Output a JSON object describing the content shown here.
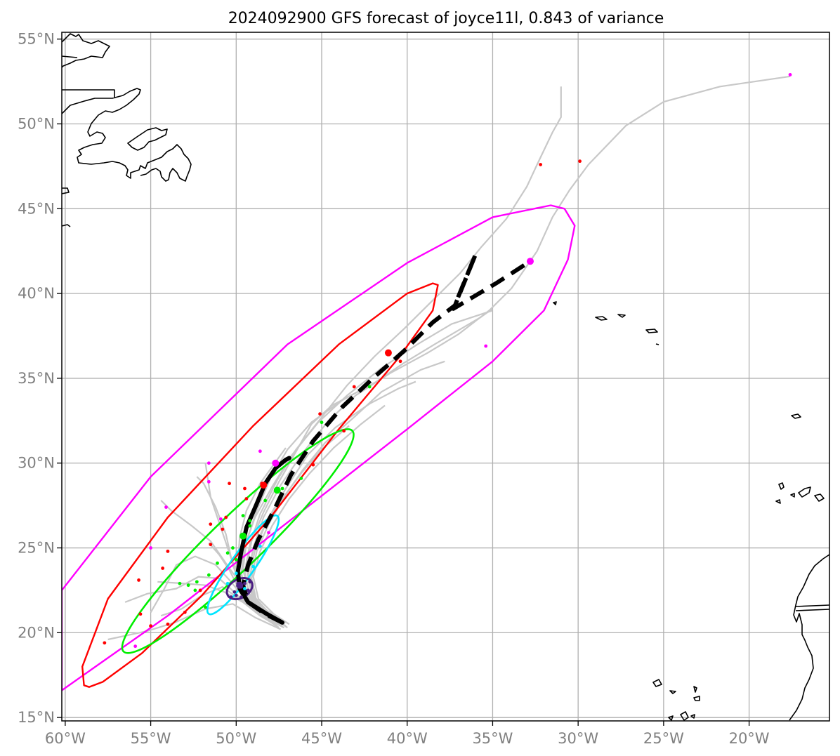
{
  "title": "2024092900 GFS forecast of joyce11l, 0.843 of variance",
  "map": {
    "lon_range": [
      -60.2,
      -15.3
    ],
    "lat_range": [
      14.8,
      55.4
    ],
    "lon_ticks": [
      -60,
      -55,
      -50,
      -45,
      -40,
      -35,
      -30,
      -25,
      -20
    ],
    "lat_ticks": [
      15,
      20,
      25,
      30,
      35,
      40,
      45,
      50,
      55
    ],
    "lon_tick_labels": [
      "60°W",
      "55°W",
      "50°W",
      "45°W",
      "40°W",
      "35°W",
      "30°W",
      "25°W",
      "20°W"
    ],
    "lat_tick_labels": [
      "15°N",
      "20°N",
      "25°N",
      "30°N",
      "35°N",
      "40°N",
      "45°N",
      "50°N",
      "55°N"
    ],
    "grid": true
  },
  "colors": {
    "member_track": "#c8c8c8",
    "mean_track": "#000000",
    "ellipse_red": "#ff0000",
    "ellipse_magenta": "#ff00ff",
    "ellipse_green": "#00ee00",
    "ellipse_cyan": "#00e5ff",
    "ellipse_purple": "#4b1f82",
    "coastline": "#000000"
  },
  "mean_track_solid": [
    [
      -47.3,
      20.6
    ],
    [
      -48.2,
      21.1
    ],
    [
      -49.3,
      21.8
    ],
    [
      -49.8,
      22.6
    ],
    [
      -49.9,
      23.6
    ],
    [
      -49.7,
      24.8
    ],
    [
      -49.4,
      26.2
    ],
    [
      -48.8,
      27.6
    ],
    [
      -48.3,
      28.8
    ],
    [
      -47.7,
      29.7
    ],
    [
      -47.1,
      30.2
    ],
    [
      -46.9,
      30.3
    ]
  ],
  "mean_track_dashed": [
    [
      -47.3,
      20.6
    ],
    [
      -48.3,
      21.1
    ],
    [
      -49.3,
      21.8
    ],
    [
      -49.6,
      22.8
    ],
    [
      -49.3,
      24.0
    ],
    [
      -48.7,
      25.5
    ],
    [
      -47.8,
      27.2
    ],
    [
      -46.8,
      29.3
    ],
    [
      -45.5,
      31.3
    ],
    [
      -43.8,
      33.3
    ],
    [
      -42.0,
      35.0
    ],
    [
      -40.2,
      36.6
    ],
    [
      -38.5,
      38.3
    ],
    [
      -37.2,
      39.3
    ],
    [
      -36.0,
      42.3
    ],
    [
      -37.3,
      39.1
    ],
    [
      -34.8,
      40.6
    ],
    [
      -32.8,
      41.9
    ]
  ],
  "member_tracks": [
    [
      [
        -47.3,
        20.4
      ],
      [
        -48.5,
        21.1
      ],
      [
        -49.5,
        22.0
      ],
      [
        -50.3,
        23.0
      ],
      [
        -51.2,
        24.0
      ],
      [
        -52.4,
        24.5
      ],
      [
        -53.5,
        24.0
      ],
      [
        -54.2,
        22.6
      ],
      [
        -55.0,
        21.2
      ]
    ],
    [
      [
        -47.5,
        20.5
      ],
      [
        -48.8,
        21.2
      ],
      [
        -49.9,
        22.2
      ],
      [
        -51.0,
        23.2
      ],
      [
        -52.2,
        23.3
      ],
      [
        -53.5,
        22.6
      ],
      [
        -55.2,
        22.3
      ],
      [
        -56.5,
        21.8
      ]
    ],
    [
      [
        -47.2,
        20.3
      ],
      [
        -48.6,
        21.0
      ],
      [
        -49.7,
        21.9
      ],
      [
        -50.8,
        22.7
      ],
      [
        -52.0,
        22.2
      ],
      [
        -53.2,
        21.4
      ],
      [
        -54.4,
        21.0
      ]
    ],
    [
      [
        -47.4,
        20.2
      ],
      [
        -48.9,
        20.9
      ],
      [
        -50.2,
        21.7
      ],
      [
        -51.8,
        21.4
      ],
      [
        -53.6,
        20.6
      ],
      [
        -55.2,
        20.1
      ],
      [
        -57.5,
        19.6
      ]
    ],
    [
      [
        -47.1,
        20.6
      ],
      [
        -48.2,
        21.3
      ],
      [
        -49.3,
        22.3
      ],
      [
        -50.4,
        23.8
      ],
      [
        -51.5,
        25.4
      ],
      [
        -52.6,
        26.3
      ],
      [
        -53.8,
        27.2
      ],
      [
        -54.4,
        27.8
      ]
    ],
    [
      [
        -47.3,
        20.7
      ],
      [
        -48.4,
        21.4
      ],
      [
        -49.5,
        22.6
      ],
      [
        -50.3,
        24.4
      ],
      [
        -50.9,
        26.2
      ],
      [
        -51.5,
        28.0
      ],
      [
        -51.8,
        30.0
      ]
    ],
    [
      [
        -47.2,
        20.5
      ],
      [
        -48.5,
        21.2
      ],
      [
        -49.6,
        22.4
      ],
      [
        -50.2,
        24.0
      ],
      [
        -50.6,
        25.8
      ],
      [
        -51.2,
        27.4
      ],
      [
        -51.9,
        28.8
      ],
      [
        -52.3,
        29.2
      ]
    ],
    [
      [
        -47.5,
        20.8
      ],
      [
        -48.6,
        21.5
      ],
      [
        -49.5,
        22.6
      ],
      [
        -49.9,
        24.0
      ],
      [
        -49.8,
        25.6
      ],
      [
        -49.4,
        27.2
      ],
      [
        -48.6,
        28.8
      ],
      [
        -47.6,
        30.2
      ],
      [
        -47.1,
        30.9
      ]
    ],
    [
      [
        -47.3,
        20.6
      ],
      [
        -48.2,
        21.3
      ],
      [
        -49.1,
        22.3
      ],
      [
        -49.4,
        23.8
      ],
      [
        -49.1,
        25.4
      ],
      [
        -48.4,
        27.1
      ],
      [
        -47.5,
        28.9
      ],
      [
        -46.6,
        30.5
      ],
      [
        -45.6,
        32.3
      ],
      [
        -44.4,
        33.4
      ],
      [
        -42.9,
        34.2
      ]
    ],
    [
      [
        -47.1,
        20.4
      ],
      [
        -48.0,
        21.0
      ],
      [
        -48.9,
        21.9
      ],
      [
        -49.2,
        23.3
      ],
      [
        -48.9,
        24.9
      ],
      [
        -48.2,
        26.6
      ],
      [
        -47.1,
        28.5
      ],
      [
        -45.8,
        30.5
      ],
      [
        -44.2,
        32.1
      ],
      [
        -42.2,
        33.5
      ],
      [
        -40.5,
        34.4
      ],
      [
        -39.5,
        34.8
      ]
    ],
    [
      [
        -47.4,
        20.6
      ],
      [
        -48.3,
        21.2
      ],
      [
        -49.2,
        22.2
      ],
      [
        -49.6,
        23.7
      ],
      [
        -49.4,
        25.4
      ],
      [
        -48.8,
        27.2
      ],
      [
        -48.0,
        29.1
      ],
      [
        -47.0,
        30.8
      ],
      [
        -45.6,
        32.4
      ],
      [
        -43.8,
        33.7
      ],
      [
        -41.8,
        34.8
      ],
      [
        -40.2,
        35.9
      ],
      [
        -38.4,
        37.0
      ],
      [
        -35.7,
        38.6
      ],
      [
        -35.0,
        39.1
      ]
    ],
    [
      [
        -47.2,
        20.5
      ],
      [
        -48.1,
        21.1
      ],
      [
        -49.0,
        22.0
      ],
      [
        -49.3,
        23.4
      ],
      [
        -49.0,
        25.0
      ],
      [
        -48.4,
        26.8
      ],
      [
        -47.4,
        28.7
      ],
      [
        -46.1,
        30.6
      ],
      [
        -44.6,
        32.5
      ],
      [
        -43.0,
        34.0
      ],
      [
        -41.0,
        35.3
      ],
      [
        -38.8,
        36.5
      ],
      [
        -37.0,
        37.6
      ],
      [
        -35.2,
        39.0
      ],
      [
        -33.9,
        40.3
      ],
      [
        -32.4,
        42.5
      ],
      [
        -31.5,
        44.5
      ],
      [
        -30.5,
        46.1
      ],
      [
        -29.4,
        47.6
      ],
      [
        -27.2,
        49.9
      ],
      [
        -25.0,
        51.3
      ],
      [
        -21.7,
        52.2
      ],
      [
        -17.6,
        52.8
      ]
    ],
    [
      [
        -47.3,
        20.6
      ],
      [
        -48.3,
        21.2
      ],
      [
        -49.2,
        22.1
      ],
      [
        -49.5,
        23.6
      ],
      [
        -49.2,
        25.2
      ],
      [
        -48.6,
        27.0
      ],
      [
        -47.6,
        29.0
      ],
      [
        -46.5,
        30.8
      ],
      [
        -45.0,
        32.7
      ],
      [
        -43.5,
        34.6
      ],
      [
        -41.9,
        36.3
      ],
      [
        -40.2,
        37.9
      ],
      [
        -38.6,
        39.5
      ],
      [
        -36.9,
        41.2
      ],
      [
        -35.7,
        42.7
      ],
      [
        -34.2,
        44.4
      ],
      [
        -33.0,
        46.3
      ],
      [
        -32.4,
        47.6
      ],
      [
        -31.5,
        49.5
      ],
      [
        -31.0,
        50.4
      ],
      [
        -31.0,
        52.2
      ]
    ],
    [
      [
        -47.4,
        20.7
      ],
      [
        -48.4,
        21.2
      ],
      [
        -49.3,
        22.1
      ],
      [
        -49.7,
        23.5
      ],
      [
        -49.5,
        25.1
      ],
      [
        -48.9,
        26.8
      ],
      [
        -47.9,
        28.6
      ],
      [
        -46.8,
        30.4
      ],
      [
        -45.2,
        32.4
      ],
      [
        -43.5,
        34.0
      ],
      [
        -41.5,
        35.6
      ],
      [
        -39.4,
        37.0
      ],
      [
        -37.4,
        38.2
      ],
      [
        -35.0,
        39.0
      ]
    ],
    [
      [
        -47.0,
        20.3
      ],
      [
        -47.9,
        20.9
      ],
      [
        -48.8,
        21.8
      ],
      [
        -49.1,
        23.2
      ],
      [
        -48.8,
        24.8
      ],
      [
        -48.1,
        26.4
      ],
      [
        -47.2,
        28.0
      ],
      [
        -46.1,
        29.6
      ],
      [
        -44.8,
        31.2
      ],
      [
        -43.0,
        32.8
      ],
      [
        -41.5,
        34.2
      ],
      [
        -39.2,
        35.5
      ],
      [
        -37.8,
        36.0
      ]
    ],
    [
      [
        -46.9,
        20.5
      ],
      [
        -47.8,
        21.1
      ],
      [
        -48.7,
        22.0
      ],
      [
        -49.0,
        23.3
      ],
      [
        -48.6,
        24.8
      ],
      [
        -47.9,
        26.3
      ],
      [
        -46.9,
        27.9
      ],
      [
        -45.7,
        29.4
      ],
      [
        -44.3,
        30.9
      ],
      [
        -42.7,
        32.3
      ],
      [
        -41.3,
        33.4
      ]
    ],
    [
      [
        -47.2,
        20.6
      ],
      [
        -48.1,
        21.2
      ],
      [
        -49.0,
        22.1
      ],
      [
        -49.3,
        23.4
      ],
      [
        -49.0,
        24.9
      ],
      [
        -48.3,
        26.4
      ],
      [
        -47.3,
        27.9
      ],
      [
        -46.2,
        29.4
      ],
      [
        -44.9,
        30.9
      ],
      [
        -43.4,
        32.2
      ]
    ],
    [
      [
        -47.5,
        20.3
      ],
      [
        -48.4,
        20.9
      ],
      [
        -49.3,
        21.7
      ],
      [
        -49.9,
        22.7
      ],
      [
        -50.4,
        23.7
      ],
      [
        -51.0,
        24.6
      ],
      [
        -51.6,
        25.3
      ]
    ],
    [
      [
        -47.6,
        20.4
      ],
      [
        -48.6,
        21.0
      ],
      [
        -49.6,
        21.8
      ],
      [
        -50.7,
        22.4
      ],
      [
        -51.8,
        22.8
      ],
      [
        -53.0,
        22.9
      ],
      [
        -54.6,
        23.0
      ]
    ]
  ],
  "forecast_points": {
    "red": [
      [
        -32.2,
        47.6
      ],
      [
        -29.9,
        47.8
      ],
      [
        -41.1,
        36.5
      ],
      [
        -40.4,
        36.0
      ],
      [
        -43.1,
        34.5
      ],
      [
        -45.1,
        32.9
      ],
      [
        -43.7,
        31.9
      ],
      [
        -45.5,
        29.9
      ],
      [
        -48.5,
        28.8
      ],
      [
        -48.3,
        28.7
      ],
      [
        -49.5,
        28.5
      ],
      [
        -50.4,
        28.8
      ],
      [
        -49.4,
        27.9
      ],
      [
        -50.6,
        26.8
      ],
      [
        -50.8,
        26.1
      ],
      [
        -51.5,
        26.4
      ],
      [
        -51.5,
        25.2
      ],
      [
        -54.0,
        24.8
      ],
      [
        -54.3,
        23.8
      ],
      [
        -55.7,
        23.1
      ],
      [
        -52.1,
        22.5
      ],
      [
        -53.0,
        21.2
      ],
      [
        -55.6,
        21.1
      ],
      [
        -55.0,
        20.4
      ],
      [
        -54.0,
        20.5
      ],
      [
        -57.7,
        19.4
      ]
    ],
    "magenta": [
      [
        -17.6,
        52.9
      ],
      [
        -32.8,
        41.9
      ],
      [
        -35.4,
        36.9
      ],
      [
        -47.6,
        30.0
      ],
      [
        -48.6,
        30.7
      ],
      [
        -51.6,
        30.0
      ],
      [
        -51.6,
        28.9
      ],
      [
        -54.1,
        27.4
      ],
      [
        -50.9,
        26.7
      ],
      [
        -55.0,
        25.0
      ],
      [
        -48.1,
        25.9
      ],
      [
        -55.9,
        19.2
      ]
    ],
    "green": [
      [
        -42.2,
        34.5
      ],
      [
        -45.0,
        32.4
      ],
      [
        -46.2,
        29.1
      ],
      [
        -47.3,
        28.5
      ],
      [
        -48.3,
        27.8
      ],
      [
        -49.2,
        26.6
      ],
      [
        -49.6,
        25.7
      ],
      [
        -50.2,
        25.0
      ],
      [
        -50.5,
        24.7
      ],
      [
        -51.1,
        24.1
      ],
      [
        -51.6,
        23.4
      ],
      [
        -52.3,
        23.0
      ],
      [
        -52.8,
        22.8
      ],
      [
        -53.3,
        22.9
      ],
      [
        -51.8,
        21.5
      ],
      [
        -52.4,
        22.5
      ],
      [
        -50.0,
        24.3
      ],
      [
        -49.6,
        26.9
      ],
      [
        -49.2,
        26.3
      ]
    ],
    "cyan": [
      [
        -50.0,
        23.5
      ],
      [
        -50.5,
        22.9
      ],
      [
        -49.5,
        22.6
      ],
      [
        -49.0,
        23.9
      ],
      [
        -48.6,
        25.1
      ]
    ],
    "purple": [
      [
        -50.1,
        22.4
      ],
      [
        -49.7,
        22.7
      ],
      [
        -49.3,
        22.5
      ],
      [
        -50.3,
        22.1
      ],
      [
        -49.5,
        22.9
      ],
      [
        -50.0,
        22.2
      ],
      [
        -49.7,
        22.1
      ],
      [
        -49.2,
        23.0
      ],
      [
        -49.9,
        22.9
      ]
    ]
  },
  "mean_markers": [
    {
      "lon": -47.7,
      "lat": 30.0,
      "color": "#ff00ff"
    },
    {
      "lon": -48.4,
      "lat": 28.7,
      "color": "#ff0000"
    },
    {
      "lon": -47.6,
      "lat": 28.4,
      "color": "#00ee00"
    },
    {
      "lon": -41.1,
      "lat": 36.5,
      "color": "#ff0000"
    },
    {
      "lon": -32.8,
      "lat": 41.9,
      "color": "#ff00ff"
    },
    {
      "lon": -49.6,
      "lat": 25.7,
      "color": "#00ee00"
    },
    {
      "lon": -49.8,
      "lat": 22.8,
      "color": "#4b1f82"
    }
  ],
  "ellipses": [
    {
      "name": "magenta",
      "color": "#ff00ff",
      "polygon": [
        [
          -30.2,
          44.0
        ],
        [
          -30.8,
          45.0
        ],
        [
          -31.6,
          45.2
        ],
        [
          -35.0,
          44.5
        ],
        [
          -40.0,
          41.8
        ],
        [
          -47.0,
          37.0
        ],
        [
          -55.0,
          29.2
        ],
        [
          -60.2,
          22.5
        ]
      ],
      "polygon2": [
        [
          -30.2,
          44.0
        ],
        [
          -30.6,
          42.0
        ],
        [
          -32.0,
          39.0
        ],
        [
          -35.0,
          36.0
        ],
        [
          -40.0,
          32.0
        ],
        [
          -47.0,
          26.5
        ],
        [
          -54.0,
          21.0
        ],
        [
          -60.2,
          16.6
        ]
      ]
    },
    {
      "name": "red",
      "color": "#ff0000",
      "polygon": [
        [
          -38.2,
          40.5
        ],
        [
          -38.5,
          40.6
        ],
        [
          -40.0,
          40.0
        ],
        [
          -44.0,
          37.0
        ],
        [
          -49.0,
          32.2
        ],
        [
          -54.0,
          26.8
        ],
        [
          -57.5,
          22.0
        ],
        [
          -59.0,
          18.0
        ],
        [
          -58.9,
          16.9
        ]
      ],
      "polygon2": [
        [
          -38.2,
          40.5
        ],
        [
          -38.5,
          39.0
        ],
        [
          -40.5,
          36.2
        ],
        [
          -44.0,
          32.0
        ],
        [
          -48.0,
          26.8
        ],
        [
          -52.0,
          22.2
        ],
        [
          -55.5,
          18.8
        ],
        [
          -57.8,
          17.1
        ],
        [
          -58.6,
          16.8
        ],
        [
          -58.9,
          16.9
        ]
      ]
    },
    {
      "name": "green",
      "color": "#00ee00",
      "cx": -49.9,
      "cy": 25.4,
      "rx": 9.3,
      "ry": 1.5,
      "angle": 44
    },
    {
      "name": "cyan",
      "color": "#00e5ff",
      "cx": -49.6,
      "cy": 24.0,
      "rx": 3.5,
      "ry": 0.7,
      "angle": 55
    },
    {
      "name": "purple",
      "color": "#4b1f82",
      "cx": -49.8,
      "cy": 22.6,
      "rx": 0.8,
      "ry": 0.55,
      "angle": 30
    }
  ]
}
